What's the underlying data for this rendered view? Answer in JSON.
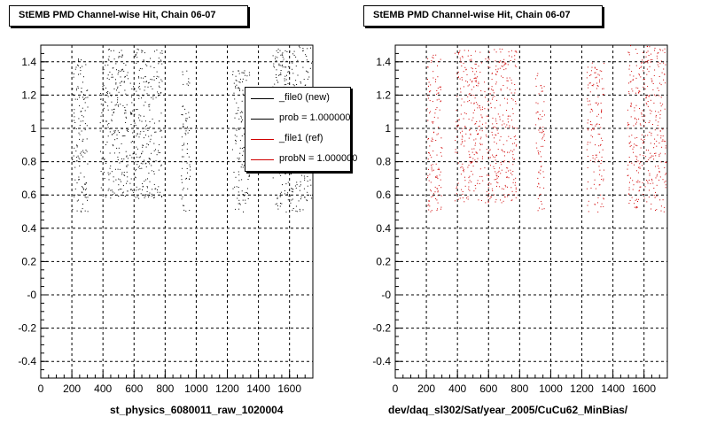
{
  "colors": {
    "new": "#000000",
    "ref": "#d00000"
  },
  "panels": [
    {
      "title": "StEMB PMD Channel-wise Hit, Chain 06-07",
      "xlabel": "st_physics_6080011_raw_1020004",
      "legend": [
        {
          "label": "_file0 (new)",
          "color": "#000000"
        },
        {
          "label": "prob = 1.000000",
          "color": "#000000"
        },
        {
          "label": "_file1 (ref)",
          "color": "#d00000"
        },
        {
          "label": "probN = 1.000000",
          "color": "#d00000"
        }
      ]
    },
    {
      "title": "StEMB PMD Channel-wise Hit, Chain 06-07",
      "xlabel": "dev/daq_sl302/Sat/year_2005/CuCu62_MinBias/"
    }
  ],
  "chart_data": [
    {
      "type": "scatter",
      "title": "StEMB PMD Channel-wise Hit, Chain 06-07",
      "xlabel": "st_physics_6080011_raw_1020004",
      "ylabel": "",
      "xlim": [
        0,
        1750
      ],
      "ylim": [
        -0.5,
        1.5
      ],
      "xticks": [
        "0",
        "200",
        "400",
        "600",
        "800",
        "1000",
        "1200",
        "1400",
        "1600"
      ],
      "yticks": [
        "-0.4",
        "-0.2",
        "-0",
        "0.2",
        "0.4",
        "0.6",
        "0.8",
        "1",
        "1.2",
        "1.4"
      ],
      "grid": true,
      "legend_position": "top-right",
      "series": [
        {
          "name": "_file0 (new)",
          "color": "#000000",
          "clusters": [
            [
              200,
              300,
              0.5,
              1.45
            ],
            [
              380,
              560,
              0.58,
              1.48
            ],
            [
              570,
              780,
              0.58,
              1.48
            ],
            [
              900,
              960,
              0.5,
              1.35
            ],
            [
              1230,
              1340,
              0.5,
              1.35
            ],
            [
              1490,
              1740,
              0.5,
              1.5
            ]
          ]
        }
      ]
    },
    {
      "type": "scatter",
      "title": "StEMB PMD Channel-wise Hit, Chain 06-07",
      "xlabel": "dev/daq_sl302/Sat/year_2005/CuCu62_MinBias/",
      "ylabel": "",
      "xlim": [
        0,
        1750
      ],
      "ylim": [
        -0.5,
        1.5
      ],
      "xticks": [
        "0",
        "200",
        "400",
        "600",
        "800",
        "1000",
        "1200",
        "1400",
        "1600"
      ],
      "yticks": [
        "-0.4",
        "-0.2",
        "-0",
        "0.2",
        "0.4",
        "0.6",
        "0.8",
        "1",
        "1.2",
        "1.4"
      ],
      "grid": true,
      "series": [
        {
          "name": "_file1 (ref)",
          "color": "#d00000",
          "clusters": [
            [
              200,
              300,
              0.5,
              1.45
            ],
            [
              380,
              560,
              0.55,
              1.48
            ],
            [
              570,
              780,
              0.55,
              1.48
            ],
            [
              900,
              960,
              0.5,
              1.35
            ],
            [
              1230,
              1340,
              0.5,
              1.4
            ],
            [
              1490,
              1740,
              0.5,
              1.5
            ]
          ]
        }
      ]
    }
  ]
}
